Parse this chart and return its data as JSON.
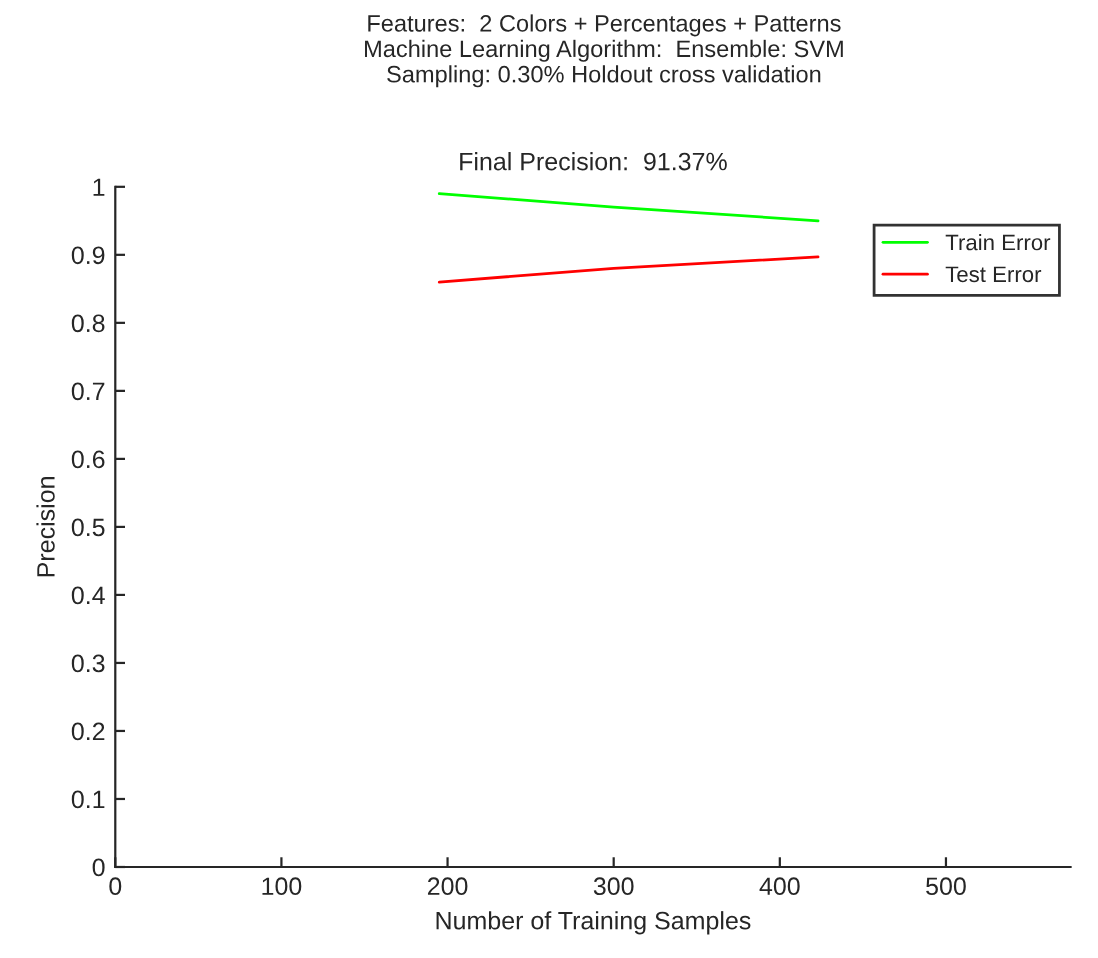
{
  "chart_data": {
    "type": "line",
    "title": "Features:  2 Colors + Percentages + Patterns\nMachine Learning Algorithm:  Ensemble: SVM\nSampling: 0.30% Holdout cross validation",
    "subtitle": "Final Precision:  91.37%",
    "xlabel": "Number of Training Samples",
    "ylabel": "Precision",
    "series": [
      {
        "name": "Train Error",
        "color": "#00ff00",
        "x": [
          195,
          300,
          423
        ],
        "values": [
          0.99,
          0.97,
          0.95
        ]
      },
      {
        "name": "Test Error",
        "color": "#ff0000",
        "x": [
          195,
          300,
          423
        ],
        "values": [
          0.86,
          0.88,
          0.897
        ]
      }
    ],
    "xlim": [
      0,
      575
    ],
    "xticks": [
      0,
      100,
      200,
      300,
      400,
      500
    ],
    "ylim": [
      0,
      1
    ],
    "yticks": [
      0,
      0.1,
      0.2,
      0.3,
      0.4,
      0.5,
      0.6,
      0.7,
      0.8,
      0.9,
      1
    ],
    "legend": "top right",
    "grid": false,
    "line_style": "solid"
  }
}
